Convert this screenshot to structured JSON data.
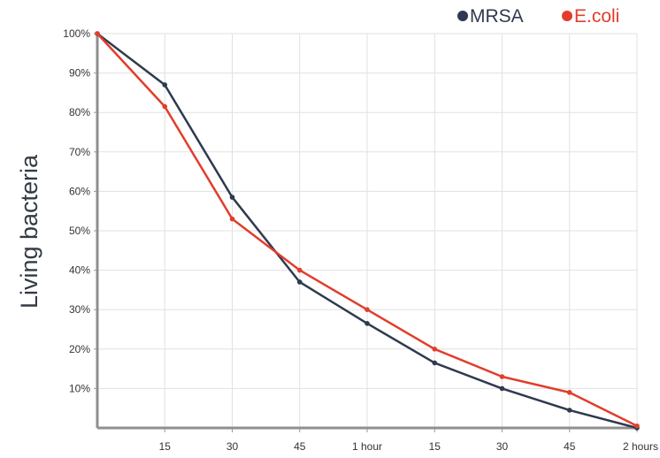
{
  "chart_data": {
    "type": "line",
    "title": "",
    "xlabel": "",
    "ylabel": "Living bacteria",
    "categories": [
      "",
      "15",
      "30",
      "45",
      "1 hour",
      "15",
      "30",
      "45",
      "2 hours"
    ],
    "ytick_labels": [
      "10%",
      "20%",
      "30%",
      "40%",
      "50%",
      "60%",
      "70%",
      "80%",
      "90%",
      "100%"
    ],
    "ylim": [
      0,
      100
    ],
    "grid": true,
    "legend_position": "top-right",
    "series": [
      {
        "name": "MRSA",
        "color": "#2e3a4f",
        "values": [
          100,
          87,
          58.5,
          37,
          26.5,
          16.5,
          10,
          4.5,
          0
        ]
      },
      {
        "name": "E.coli",
        "color": "#e23d2c",
        "values": [
          100,
          81.5,
          53,
          40,
          30,
          20,
          13,
          9,
          0.5
        ]
      }
    ]
  }
}
